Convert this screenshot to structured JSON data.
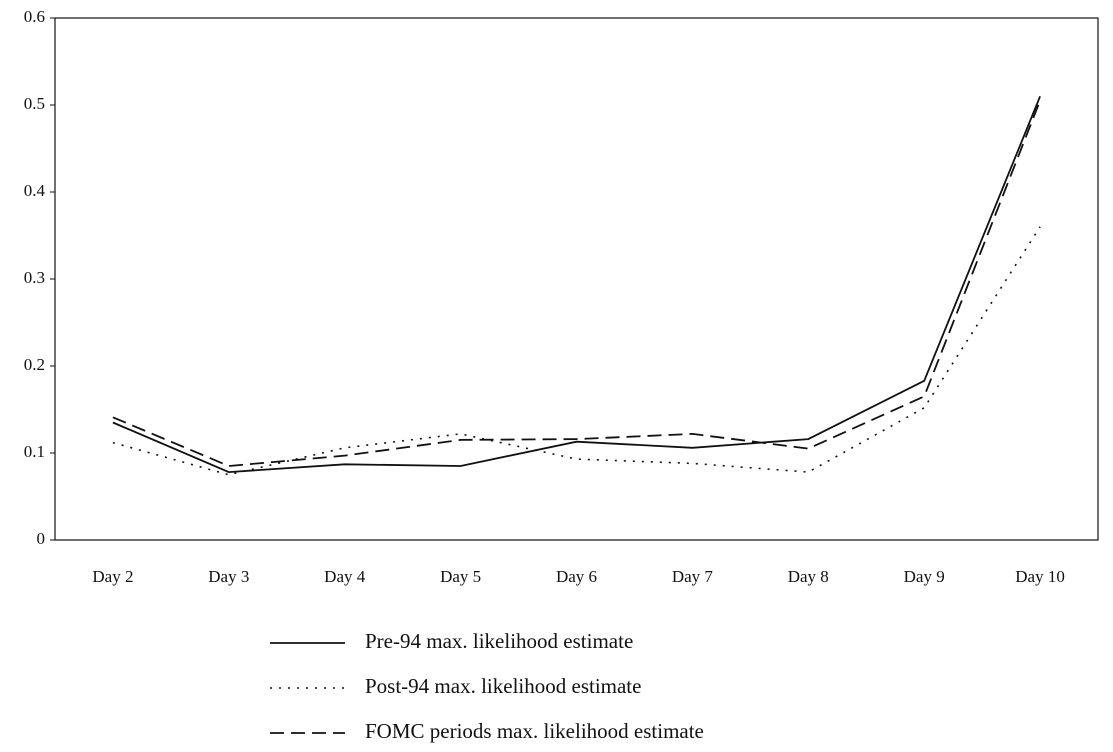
{
  "chart_data": {
    "type": "line",
    "categories": [
      "Day 2",
      "Day 3",
      "Day 4",
      "Day 5",
      "Day 6",
      "Day 7",
      "Day 8",
      "Day 9",
      "Day 10"
    ],
    "series": [
      {
        "name": "Pre-94 max. likelihood estimate",
        "color": "#111111",
        "style": "solid",
        "values": [
          0.135,
          0.078,
          0.087,
          0.085,
          0.113,
          0.106,
          0.116,
          0.183,
          0.51
        ]
      },
      {
        "name": "Post-94 max. likelihood estimate",
        "color": "#111111",
        "style": "dotted",
        "values": [
          0.112,
          0.075,
          0.106,
          0.122,
          0.093,
          0.088,
          0.078,
          0.152,
          0.36
        ]
      },
      {
        "name": "FOMC periods max. likelihood estimate",
        "color": "#111111",
        "style": "dashed",
        "values": [
          0.141,
          0.085,
          0.097,
          0.115,
          0.116,
          0.122,
          0.105,
          0.165,
          0.505
        ]
      }
    ],
    "ylim": [
      0,
      0.6
    ],
    "yticks": [
      0,
      0.1,
      0.2,
      0.3,
      0.4,
      0.5,
      0.6
    ],
    "grid": false,
    "legend": "bottom"
  }
}
